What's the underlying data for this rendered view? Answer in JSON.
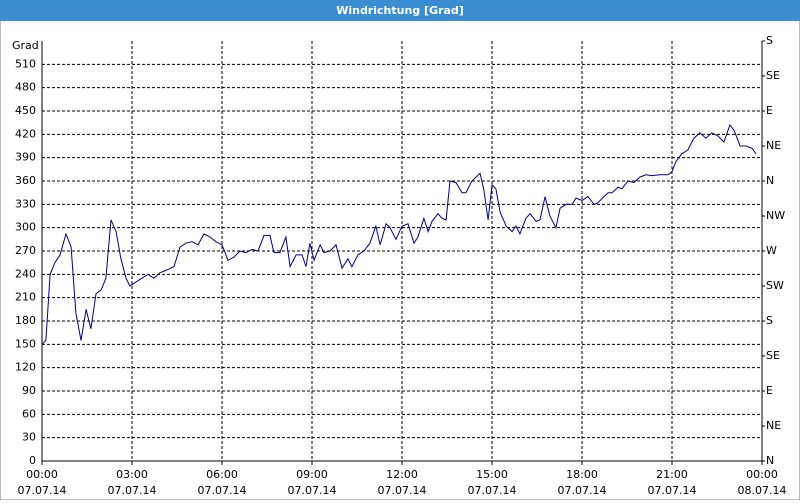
{
  "chart_data": {
    "type": "line",
    "title": "Windrichtung [Grad]",
    "y_label": "Grad",
    "xlim": [
      0,
      24
    ],
    "xticks": [
      {
        "value": 0,
        "label": "00:00",
        "sublabel": "07.07.14"
      },
      {
        "value": 3,
        "label": "03:00",
        "sublabel": "07.07.14"
      },
      {
        "value": 6,
        "label": "06:00",
        "sublabel": "07.07.14"
      },
      {
        "value": 9,
        "label": "09:00",
        "sublabel": "07.07.14"
      },
      {
        "value": 12,
        "label": "12:00",
        "sublabel": "07.07.14"
      },
      {
        "value": 15,
        "label": "15:00",
        "sublabel": "07.07.14"
      },
      {
        "value": 18,
        "label": "18:00",
        "sublabel": "07.07.14"
      },
      {
        "value": 21,
        "label": "21:00",
        "sublabel": "07.07.14"
      },
      {
        "value": 24,
        "label": "00:00",
        "sublabel": "08.07.14"
      }
    ],
    "ylim": [
      0,
      540
    ],
    "yticks": [
      0,
      30,
      60,
      90,
      120,
      150,
      180,
      210,
      240,
      270,
      300,
      330,
      360,
      390,
      420,
      450,
      480,
      510
    ],
    "y2lim": [
      0,
      540
    ],
    "y2ticks": [
      {
        "value": 0,
        "label": "N"
      },
      {
        "value": 45,
        "label": "NE"
      },
      {
        "value": 90,
        "label": "E"
      },
      {
        "value": 135,
        "label": "SE"
      },
      {
        "value": 180,
        "label": "S"
      },
      {
        "value": 225,
        "label": "SW"
      },
      {
        "value": 270,
        "label": "W"
      },
      {
        "value": 315,
        "label": "NW"
      },
      {
        "value": 360,
        "label": "N"
      },
      {
        "value": 405,
        "label": "NE"
      },
      {
        "value": 450,
        "label": "E"
      },
      {
        "value": 495,
        "label": "SE"
      },
      {
        "value": 540,
        "label": "S"
      }
    ],
    "grid": true,
    "series": [
      {
        "color": "#00008b",
        "x": [
          0,
          0.13,
          0.27,
          0.43,
          0.6,
          0.8,
          0.97,
          1.13,
          1.3,
          1.47,
          1.63,
          1.8,
          1.97,
          2.13,
          2.3,
          2.47,
          2.63,
          2.8,
          2.93,
          3.13,
          3.33,
          3.53,
          3.73,
          3.93,
          4.13,
          4.4,
          4.6,
          4.8,
          5,
          5.2,
          5.4,
          5.6,
          5.8,
          6,
          6.2,
          6.4,
          6.6,
          6.8,
          7,
          7.2,
          7.4,
          7.6,
          7.73,
          7.93,
          8.13,
          8.27,
          8.47,
          8.67,
          8.8,
          8.93,
          9.07,
          9.27,
          9.4,
          9.6,
          9.8,
          10,
          10.2,
          10.33,
          10.53,
          10.73,
          10.93,
          11.13,
          11.27,
          11.47,
          11.6,
          11.8,
          12,
          12.2,
          12.4,
          12.53,
          12.73,
          12.87,
          13,
          13.2,
          13.33,
          13.47,
          13.6,
          13.8,
          14,
          14.13,
          14.33,
          14.6,
          14.73,
          14.87,
          15,
          15.13,
          15.27,
          15.47,
          15.67,
          15.8,
          15.93,
          16.13,
          16.27,
          16.47,
          16.6,
          16.77,
          16.93,
          17.13,
          17.27,
          17.47,
          17.67,
          17.8,
          18,
          18.2,
          18.4,
          18.53,
          18.73,
          18.87,
          19,
          19.2,
          19.33,
          19.53,
          19.73,
          19.93,
          20.13,
          20.33,
          20.6,
          20.87,
          21,
          21.13,
          21.33,
          21.53,
          21.73,
          21.93,
          22.13,
          22.33,
          22.53,
          22.73,
          22.93,
          23.07,
          23.27,
          23.47,
          23.67,
          23.8
        ],
        "values": [
          150,
          155,
          240,
          255,
          265,
          292,
          275,
          190,
          155,
          195,
          170,
          215,
          220,
          235,
          310,
          295,
          260,
          235,
          225,
          230,
          235,
          240,
          235,
          242,
          245,
          250,
          275,
          280,
          282,
          278,
          292,
          288,
          282,
          278,
          258,
          262,
          270,
          268,
          272,
          270,
          290,
          290,
          268,
          268,
          288,
          250,
          265,
          265,
          250,
          280,
          258,
          278,
          268,
          270,
          278,
          248,
          260,
          250,
          265,
          270,
          280,
          302,
          278,
          305,
          300,
          285,
          302,
          305,
          280,
          288,
          312,
          295,
          308,
          318,
          312,
          310,
          360,
          358,
          345,
          345,
          360,
          370,
          348,
          310,
          355,
          350,
          320,
          302,
          295,
          302,
          292,
          312,
          318,
          308,
          310,
          340,
          315,
          300,
          325,
          330,
          330,
          338,
          335,
          340,
          330,
          332,
          340,
          345,
          345,
          352,
          350,
          360,
          358,
          365,
          368,
          367,
          368,
          368,
          372,
          385,
          395,
          400,
          415,
          422,
          415,
          422,
          418,
          410,
          432,
          425,
          405,
          405,
          402,
          395
        ]
      }
    ]
  }
}
